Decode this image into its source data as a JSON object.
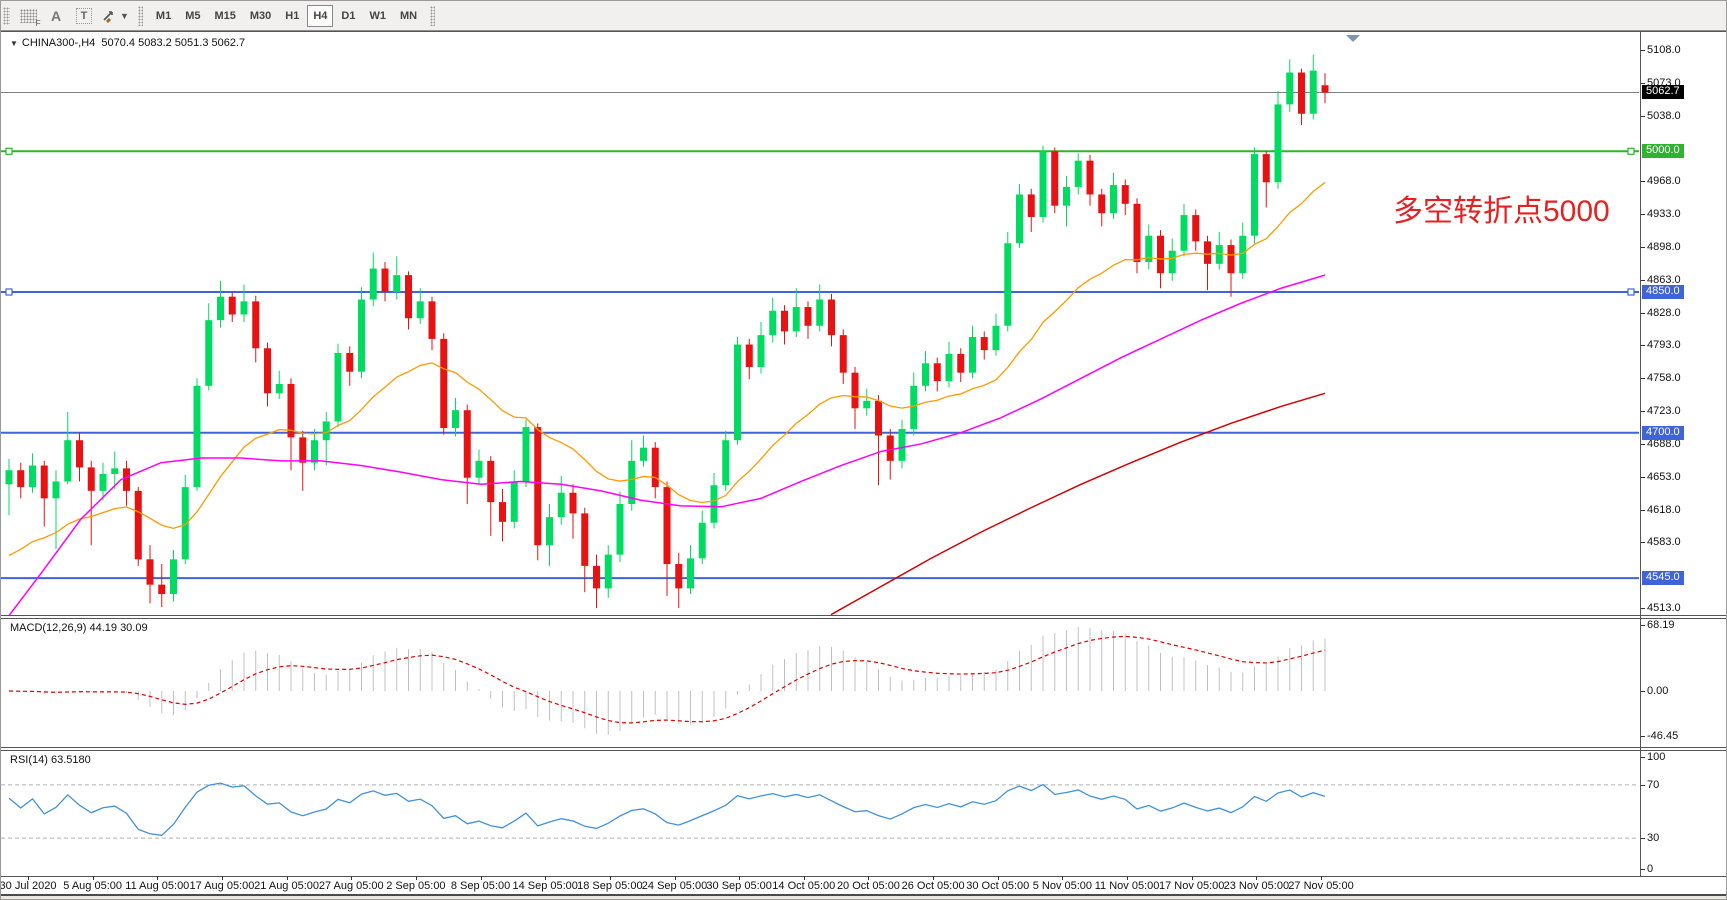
{
  "toolbar": {
    "tools": [
      {
        "name": "indicator-grid",
        "glyph": "grid-f"
      },
      {
        "name": "label-a",
        "glyph": "A"
      },
      {
        "name": "text-box",
        "glyph": "T"
      },
      {
        "name": "draw-arrows",
        "glyph": "arrows"
      }
    ],
    "timeframes": [
      "M1",
      "M5",
      "M15",
      "M30",
      "H1",
      "H4",
      "D1",
      "W1",
      "MN"
    ],
    "active_timeframe": "H4"
  },
  "chart": {
    "title_symbol": "CHINA300-,H4",
    "title_ohlc": "5070.4 5083.2 5051.3 5062.7",
    "current_price": "5062.7",
    "annotation": {
      "text": "多空转折点5000",
      "color": "#e42222"
    },
    "colors": {
      "up": "#00dc62",
      "down": "#e81212",
      "ma_fast": "#ff9a00",
      "ma_mid": "#ff00ff",
      "ma_slow": "#d40000",
      "current_line": "#808080",
      "hline_green": "#2fb22f",
      "hline_blue": "#3f63d8"
    },
    "price_ticks": [
      "5108.0",
      "5073.0",
      "5038.0",
      "4968.0",
      "4933.0",
      "4898.0",
      "4863.0",
      "4828.0",
      "4793.0",
      "4758.0",
      "4723.0",
      "4688.0",
      "4653.0",
      "4618.0",
      "4583.0",
      "4513.0"
    ],
    "hlines": [
      {
        "price": 5000,
        "label": "5000.0",
        "color": "#2fb22f",
        "handles": true
      },
      {
        "price": 4850,
        "label": "4850.0",
        "color": "#3f63d8",
        "handles": true
      },
      {
        "price": 4700,
        "label": "4700.0",
        "color": "#3f63d8",
        "handles": false
      },
      {
        "price": 4545,
        "label": "4545.0",
        "color": "#3f63d8",
        "handles": false
      }
    ],
    "candles": [
      [
        4645,
        4672,
        4612,
        4660
      ],
      [
        4660,
        4668,
        4630,
        4642
      ],
      [
        4642,
        4678,
        4636,
        4665
      ],
      [
        4665,
        4670,
        4600,
        4630
      ],
      [
        4630,
        4660,
        4576,
        4648
      ],
      [
        4648,
        4722,
        4645,
        4692
      ],
      [
        4692,
        4700,
        4648,
        4663
      ],
      [
        4663,
        4670,
        4580,
        4638
      ],
      [
        4638,
        4668,
        4628,
        4656
      ],
      [
        4656,
        4680,
        4640,
        4662
      ],
      [
        4662,
        4670,
        4622,
        4638
      ],
      [
        4638,
        4642,
        4558,
        4565
      ],
      [
        4565,
        4580,
        4518,
        4538
      ],
      [
        4538,
        4560,
        4514,
        4528
      ],
      [
        4528,
        4575,
        4520,
        4565
      ],
      [
        4565,
        4655,
        4560,
        4642
      ],
      [
        4642,
        4758,
        4638,
        4750
      ],
      [
        4750,
        4838,
        4745,
        4820
      ],
      [
        4820,
        4862,
        4812,
        4845
      ],
      [
        4845,
        4850,
        4818,
        4826
      ],
      [
        4826,
        4858,
        4818,
        4840
      ],
      [
        4840,
        4846,
        4775,
        4790
      ],
      [
        4790,
        4796,
        4728,
        4742
      ],
      [
        4742,
        4766,
        4736,
        4752
      ],
      [
        4752,
        4758,
        4660,
        4695
      ],
      [
        4695,
        4702,
        4638,
        4668
      ],
      [
        4668,
        4704,
        4660,
        4692
      ],
      [
        4692,
        4722,
        4665,
        4712
      ],
      [
        4712,
        4795,
        4706,
        4785
      ],
      [
        4785,
        4792,
        4750,
        4765
      ],
      [
        4765,
        4855,
        4758,
        4842
      ],
      [
        4842,
        4892,
        4835,
        4875
      ],
      [
        4875,
        4882,
        4840,
        4850
      ],
      [
        4850,
        4888,
        4842,
        4868
      ],
      [
        4868,
        4872,
        4810,
        4822
      ],
      [
        4822,
        4854,
        4816,
        4840
      ],
      [
        4840,
        4845,
        4788,
        4800
      ],
      [
        4800,
        4806,
        4698,
        4705
      ],
      [
        4705,
        4737,
        4696,
        4724
      ],
      [
        4724,
        4730,
        4624,
        4652
      ],
      [
        4652,
        4682,
        4645,
        4670
      ],
      [
        4670,
        4675,
        4590,
        4626
      ],
      [
        4626,
        4640,
        4584,
        4605
      ],
      [
        4605,
        4660,
        4598,
        4648
      ],
      [
        4648,
        4714,
        4642,
        4706
      ],
      [
        4706,
        4710,
        4564,
        4580
      ],
      [
        4580,
        4624,
        4558,
        4610
      ],
      [
        4610,
        4654,
        4602,
        4636
      ],
      [
        4636,
        4645,
        4587,
        4614
      ],
      [
        4614,
        4620,
        4530,
        4558
      ],
      [
        4558,
        4570,
        4513,
        4534
      ],
      [
        4534,
        4580,
        4524,
        4570
      ],
      [
        4570,
        4637,
        4562,
        4624
      ],
      [
        4624,
        4692,
        4617,
        4670
      ],
      [
        4670,
        4697,
        4664,
        4684
      ],
      [
        4684,
        4690,
        4630,
        4642
      ],
      [
        4642,
        4648,
        4526,
        4560
      ],
      [
        4560,
        4572,
        4513,
        4534
      ],
      [
        4534,
        4580,
        4528,
        4566
      ],
      [
        4566,
        4617,
        4560,
        4604
      ],
      [
        4604,
        4657,
        4598,
        4644
      ],
      [
        4644,
        4702,
        4638,
        4692
      ],
      [
        4692,
        4802,
        4687,
        4794
      ],
      [
        4794,
        4800,
        4757,
        4770
      ],
      [
        4770,
        4818,
        4763,
        4804
      ],
      [
        4804,
        4844,
        4796,
        4830
      ],
      [
        4830,
        4836,
        4794,
        4808
      ],
      [
        4808,
        4854,
        4802,
        4834
      ],
      [
        4834,
        4840,
        4800,
        4814
      ],
      [
        4814,
        4858,
        4808,
        4842
      ],
      [
        4842,
        4848,
        4792,
        4804
      ],
      [
        4804,
        4810,
        4752,
        4764
      ],
      [
        4764,
        4770,
        4704,
        4726
      ],
      [
        4726,
        4747,
        4718,
        4734
      ],
      [
        4734,
        4740,
        4644,
        4697
      ],
      [
        4697,
        4704,
        4650,
        4670
      ],
      [
        4670,
        4714,
        4662,
        4704
      ],
      [
        4704,
        4764,
        4697,
        4750
      ],
      [
        4750,
        4787,
        4744,
        4774
      ],
      [
        4774,
        4780,
        4744,
        4755
      ],
      [
        4755,
        4797,
        4748,
        4784
      ],
      [
        4784,
        4790,
        4754,
        4764
      ],
      [
        4764,
        4814,
        4758,
        4802
      ],
      [
        4802,
        4808,
        4778,
        4788
      ],
      [
        4788,
        4827,
        4782,
        4814
      ],
      [
        4814,
        4914,
        4808,
        4902
      ],
      [
        4902,
        4965,
        4897,
        4954
      ],
      [
        4954,
        4960,
        4914,
        4930
      ],
      [
        4930,
        5006,
        4924,
        5000
      ],
      [
        5000,
        5004,
        4934,
        4942
      ],
      [
        4942,
        4974,
        4920,
        4962
      ],
      [
        4962,
        4998,
        4954,
        4990
      ],
      [
        4990,
        4996,
        4942,
        4954
      ],
      [
        4954,
        4960,
        4920,
        4934
      ],
      [
        4934,
        4977,
        4928,
        4964
      ],
      [
        4964,
        4970,
        4932,
        4944
      ],
      [
        4944,
        4950,
        4870,
        4882
      ],
      [
        4882,
        4922,
        4874,
        4910
      ],
      [
        4910,
        4916,
        4854,
        4870
      ],
      [
        4870,
        4907,
        4862,
        4894
      ],
      [
        4894,
        4944,
        4888,
        4932
      ],
      [
        4932,
        4938,
        4894,
        4904
      ],
      [
        4904,
        4910,
        4852,
        4880
      ],
      [
        4880,
        4914,
        4874,
        4900
      ],
      [
        4900,
        4906,
        4845,
        4870
      ],
      [
        4870,
        4924,
        4864,
        4910
      ],
      [
        4910,
        5004,
        4902,
        4997
      ],
      [
        4997,
        5000,
        4940,
        4967
      ],
      [
        4967,
        5064,
        4960,
        5050
      ],
      [
        5050,
        5098,
        5042,
        5084
      ],
      [
        5084,
        5088,
        5028,
        5040
      ],
      [
        5040,
        5103,
        5034,
        5086
      ],
      [
        5070.4,
        5083.2,
        5051.3,
        5062.7
      ]
    ],
    "ma_mid_points": [
      [
        8,
        4505
      ],
      [
        40,
        4550
      ],
      [
        80,
        4608
      ],
      [
        120,
        4650
      ],
      [
        160,
        4668
      ],
      [
        200,
        4673
      ],
      [
        240,
        4673
      ],
      [
        280,
        4670
      ],
      [
        320,
        4670
      ],
      [
        360,
        4665
      ],
      [
        400,
        4658
      ],
      [
        440,
        4650
      ],
      [
        480,
        4645
      ],
      [
        520,
        4648
      ],
      [
        560,
        4645
      ],
      [
        600,
        4638
      ],
      [
        640,
        4628
      ],
      [
        680,
        4622
      ],
      [
        720,
        4621
      ],
      [
        760,
        4630
      ],
      [
        800,
        4648
      ],
      [
        840,
        4665
      ],
      [
        880,
        4680
      ],
      [
        920,
        4688
      ],
      [
        960,
        4700
      ],
      [
        1000,
        4716
      ],
      [
        1040,
        4736
      ],
      [
        1080,
        4758
      ],
      [
        1120,
        4780
      ],
      [
        1160,
        4800
      ],
      [
        1200,
        4820
      ],
      [
        1240,
        4838
      ],
      [
        1280,
        4854
      ],
      [
        1324,
        4868
      ]
    ],
    "ma_slow_points": [
      [
        830,
        4506
      ],
      [
        880,
        4536
      ],
      [
        930,
        4566
      ],
      [
        980,
        4594
      ],
      [
        1030,
        4620
      ],
      [
        1080,
        4645
      ],
      [
        1130,
        4668
      ],
      [
        1180,
        4690
      ],
      [
        1230,
        4710
      ],
      [
        1280,
        4728
      ],
      [
        1324,
        4742
      ]
    ]
  },
  "macd": {
    "label": "MACD(12,26,9)",
    "values": "44.19 30.09",
    "ticks": [
      "68.19",
      "0.00",
      "-46.45"
    ],
    "hist_color": "#c0c0c0",
    "signal_color": "#e00000"
  },
  "rsi": {
    "label": "RSI(14)",
    "value": "63.5180",
    "line_color": "#4191db",
    "ticks": [
      "100",
      "70",
      "30",
      "0"
    ],
    "levels": [
      70,
      30
    ]
  },
  "dates": [
    "30 Jul 2020",
    "5 Aug 05:00",
    "11 Aug 05:00",
    "17 Aug 05:00",
    "21 Aug 05:00",
    "27 Aug 05:00",
    "2 Sep 05:00",
    "8 Sep 05:00",
    "14 Sep 05:00",
    "18 Sep 05:00",
    "24 Sep 05:00",
    "30 Sep 05:00",
    "14 Oct 05:00",
    "20 Oct 05:00",
    "26 Oct 05:00",
    "30 Oct 05:00",
    "5 Nov 05:00",
    "11 Nov 05:00",
    "17 Nov 05:00",
    "23 Nov 05:00",
    "27 Nov 05:00"
  ]
}
